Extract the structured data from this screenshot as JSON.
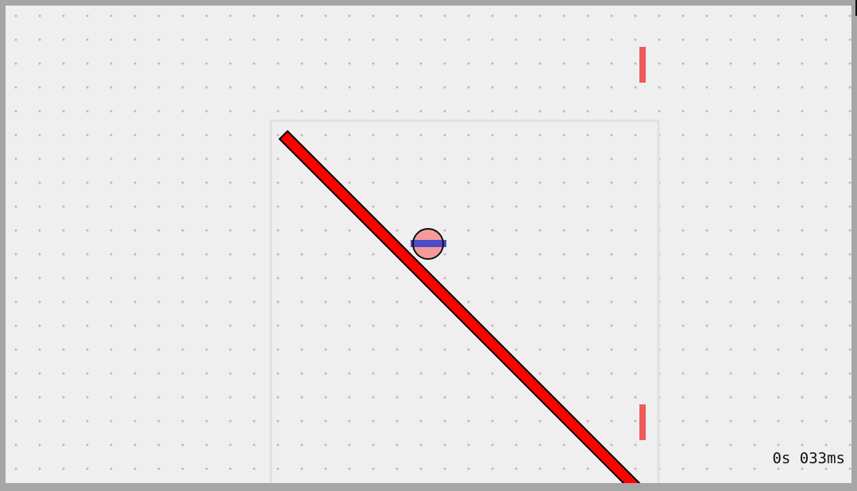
{
  "timer": {
    "label": "0s 033ms"
  },
  "colors": {
    "background": "#efefef",
    "grid_dot": "#b9b9b9",
    "bounds_outline": "#e0e0e0",
    "ramp_fill": "#ff0000",
    "ramp_stroke": "#000000",
    "ball_fill": "#f59a9a",
    "ball_stroke": "#111111",
    "ball_stripe": "#4b4bc8",
    "goal_marker": "#f05a5a"
  },
  "icons": {
    "ball": "ball-icon",
    "ramp": "ramp-icon",
    "goal": "goal-marker-icon"
  }
}
